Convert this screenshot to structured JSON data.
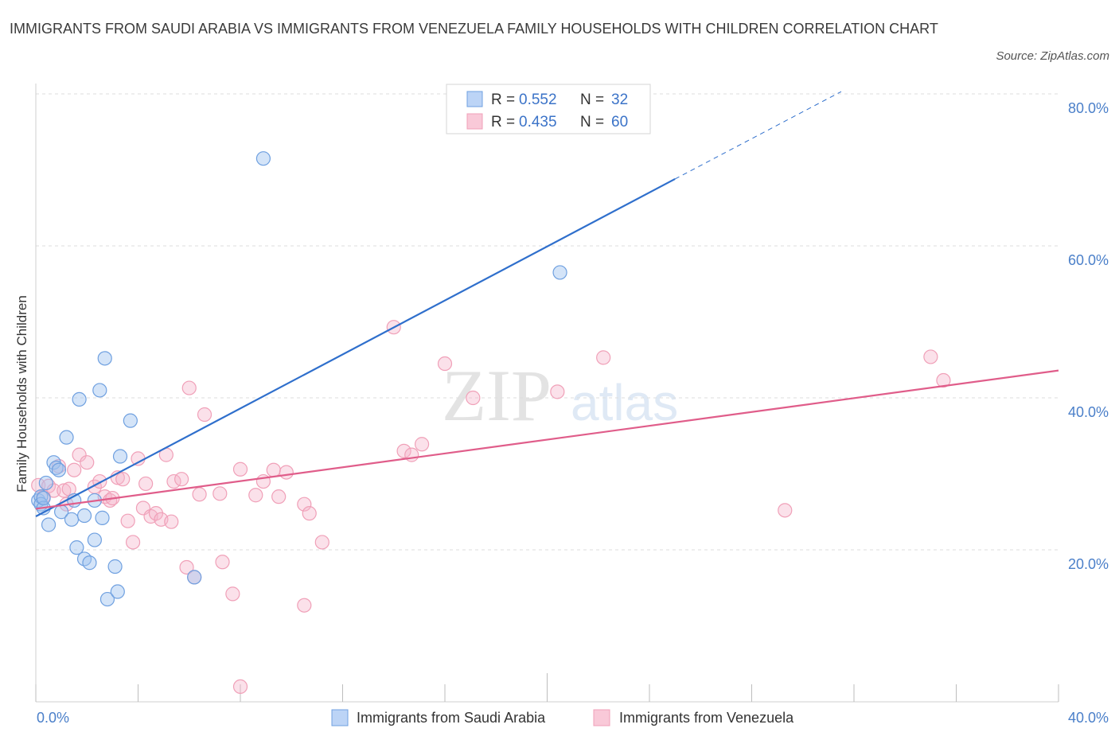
{
  "title": "IMMIGRANTS FROM SAUDI ARABIA VS IMMIGRANTS FROM VENEZUELA FAMILY HOUSEHOLDS WITH CHILDREN CORRELATION CHART",
  "source": "Source: ZipAtlas.com",
  "watermark": {
    "zip": "ZIP",
    "atlas": "atlas"
  },
  "legend_stats": [
    {
      "r_label": "R =",
      "r_value": "0.552",
      "n_label": "N =",
      "n_value": "32"
    },
    {
      "r_label": "R =",
      "r_value": "0.435",
      "n_label": "N =",
      "n_value": "60"
    }
  ],
  "chart_data": {
    "type": "scatter",
    "title": "IMMIGRANTS FROM SAUDI ARABIA VS IMMIGRANTS FROM VENEZUELA FAMILY HOUSEHOLDS WITH CHILDREN CORRELATION CHART",
    "xlabel": "",
    "ylabel": "Family Households with Children",
    "xlim": [
      0,
      40
    ],
    "ylim": [
      0,
      80
    ],
    "x_tick_labels": [
      "0.0%",
      "40.0%"
    ],
    "y_ticks": [
      20,
      40,
      60,
      80
    ],
    "y_tick_labels": [
      "20.0%",
      "40.0%",
      "60.0%",
      "80.0%"
    ],
    "grid": true,
    "legend_placement": "bottom",
    "series": [
      {
        "name": "Immigrants from Saudi Arabia",
        "color": "#6fa0e0",
        "line_color": "#2f6fcc",
        "R": 0.552,
        "N": 32,
        "trend": {
          "x0": 0.0,
          "y0": 24.4,
          "x1": 25.0,
          "y1": 68.8,
          "dash_to_x": 31.5,
          "dash_to_y": 80.3
        },
        "points": [
          [
            0.1,
            26.5
          ],
          [
            0.2,
            27.0
          ],
          [
            0.2,
            26.0
          ],
          [
            0.3,
            25.5
          ],
          [
            0.3,
            26.8
          ],
          [
            0.4,
            28.8
          ],
          [
            0.5,
            23.3
          ],
          [
            0.7,
            31.5
          ],
          [
            0.8,
            30.8
          ],
          [
            0.9,
            30.5
          ],
          [
            1.0,
            25.0
          ],
          [
            1.2,
            34.8
          ],
          [
            1.4,
            24.0
          ],
          [
            1.5,
            26.5
          ],
          [
            1.6,
            20.3
          ],
          [
            1.7,
            39.8
          ],
          [
            1.9,
            24.5
          ],
          [
            1.9,
            18.8
          ],
          [
            2.1,
            18.3
          ],
          [
            2.3,
            21.3
          ],
          [
            2.3,
            26.5
          ],
          [
            2.5,
            41.0
          ],
          [
            2.6,
            24.2
          ],
          [
            2.7,
            45.2
          ],
          [
            2.8,
            13.5
          ],
          [
            3.1,
            17.8
          ],
          [
            3.2,
            14.5
          ],
          [
            3.3,
            32.3
          ],
          [
            3.7,
            37.0
          ],
          [
            6.2,
            16.4
          ],
          [
            8.9,
            71.5
          ],
          [
            20.5,
            56.5
          ]
        ]
      },
      {
        "name": "Immigrants from Venezuela",
        "color": "#f0a0b8",
        "line_color": "#e05d8a",
        "R": 0.435,
        "N": 60,
        "trend": {
          "x0": 0.0,
          "y0": 25.4,
          "x1": 40.0,
          "y1": 43.6
        },
        "points": [
          [
            0.1,
            28.5
          ],
          [
            0.3,
            27.0
          ],
          [
            0.5,
            28.4
          ],
          [
            0.7,
            27.8
          ],
          [
            0.9,
            31.0
          ],
          [
            1.1,
            27.8
          ],
          [
            1.3,
            28.0
          ],
          [
            1.5,
            30.5
          ],
          [
            1.7,
            32.5
          ],
          [
            2.0,
            31.5
          ],
          [
            2.3,
            28.3
          ],
          [
            2.5,
            29.0
          ],
          [
            2.7,
            27.0
          ],
          [
            2.9,
            26.5
          ],
          [
            3.0,
            26.8
          ],
          [
            3.2,
            29.5
          ],
          [
            3.4,
            29.3
          ],
          [
            3.6,
            23.8
          ],
          [
            3.8,
            21.0
          ],
          [
            4.0,
            32.0
          ],
          [
            4.2,
            25.5
          ],
          [
            4.3,
            28.7
          ],
          [
            4.5,
            24.4
          ],
          [
            4.7,
            24.8
          ],
          [
            4.9,
            24.0
          ],
          [
            5.1,
            32.5
          ],
          [
            5.3,
            23.7
          ],
          [
            5.4,
            29.0
          ],
          [
            5.7,
            29.3
          ],
          [
            5.9,
            17.7
          ],
          [
            6.0,
            41.3
          ],
          [
            6.2,
            16.4
          ],
          [
            6.6,
            37.8
          ],
          [
            6.4,
            27.3
          ],
          [
            7.2,
            27.4
          ],
          [
            7.3,
            18.4
          ],
          [
            7.7,
            14.2
          ],
          [
            8.0,
            30.6
          ],
          [
            8.0,
            2.0
          ],
          [
            8.6,
            27.2
          ],
          [
            8.9,
            29.0
          ],
          [
            9.3,
            30.5
          ],
          [
            9.5,
            27.0
          ],
          [
            9.8,
            30.2
          ],
          [
            10.5,
            12.7
          ],
          [
            10.5,
            26.0
          ],
          [
            10.7,
            24.8
          ],
          [
            11.2,
            21.0
          ],
          [
            14.0,
            49.3
          ],
          [
            14.4,
            33.0
          ],
          [
            14.7,
            32.5
          ],
          [
            15.1,
            33.9
          ],
          [
            16.0,
            44.5
          ],
          [
            17.1,
            40.0
          ],
          [
            20.4,
            40.8
          ],
          [
            22.2,
            45.3
          ],
          [
            29.3,
            25.2
          ],
          [
            35.0,
            45.4
          ],
          [
            35.5,
            42.3
          ],
          [
            1.2,
            26.0
          ]
        ]
      }
    ]
  }
}
